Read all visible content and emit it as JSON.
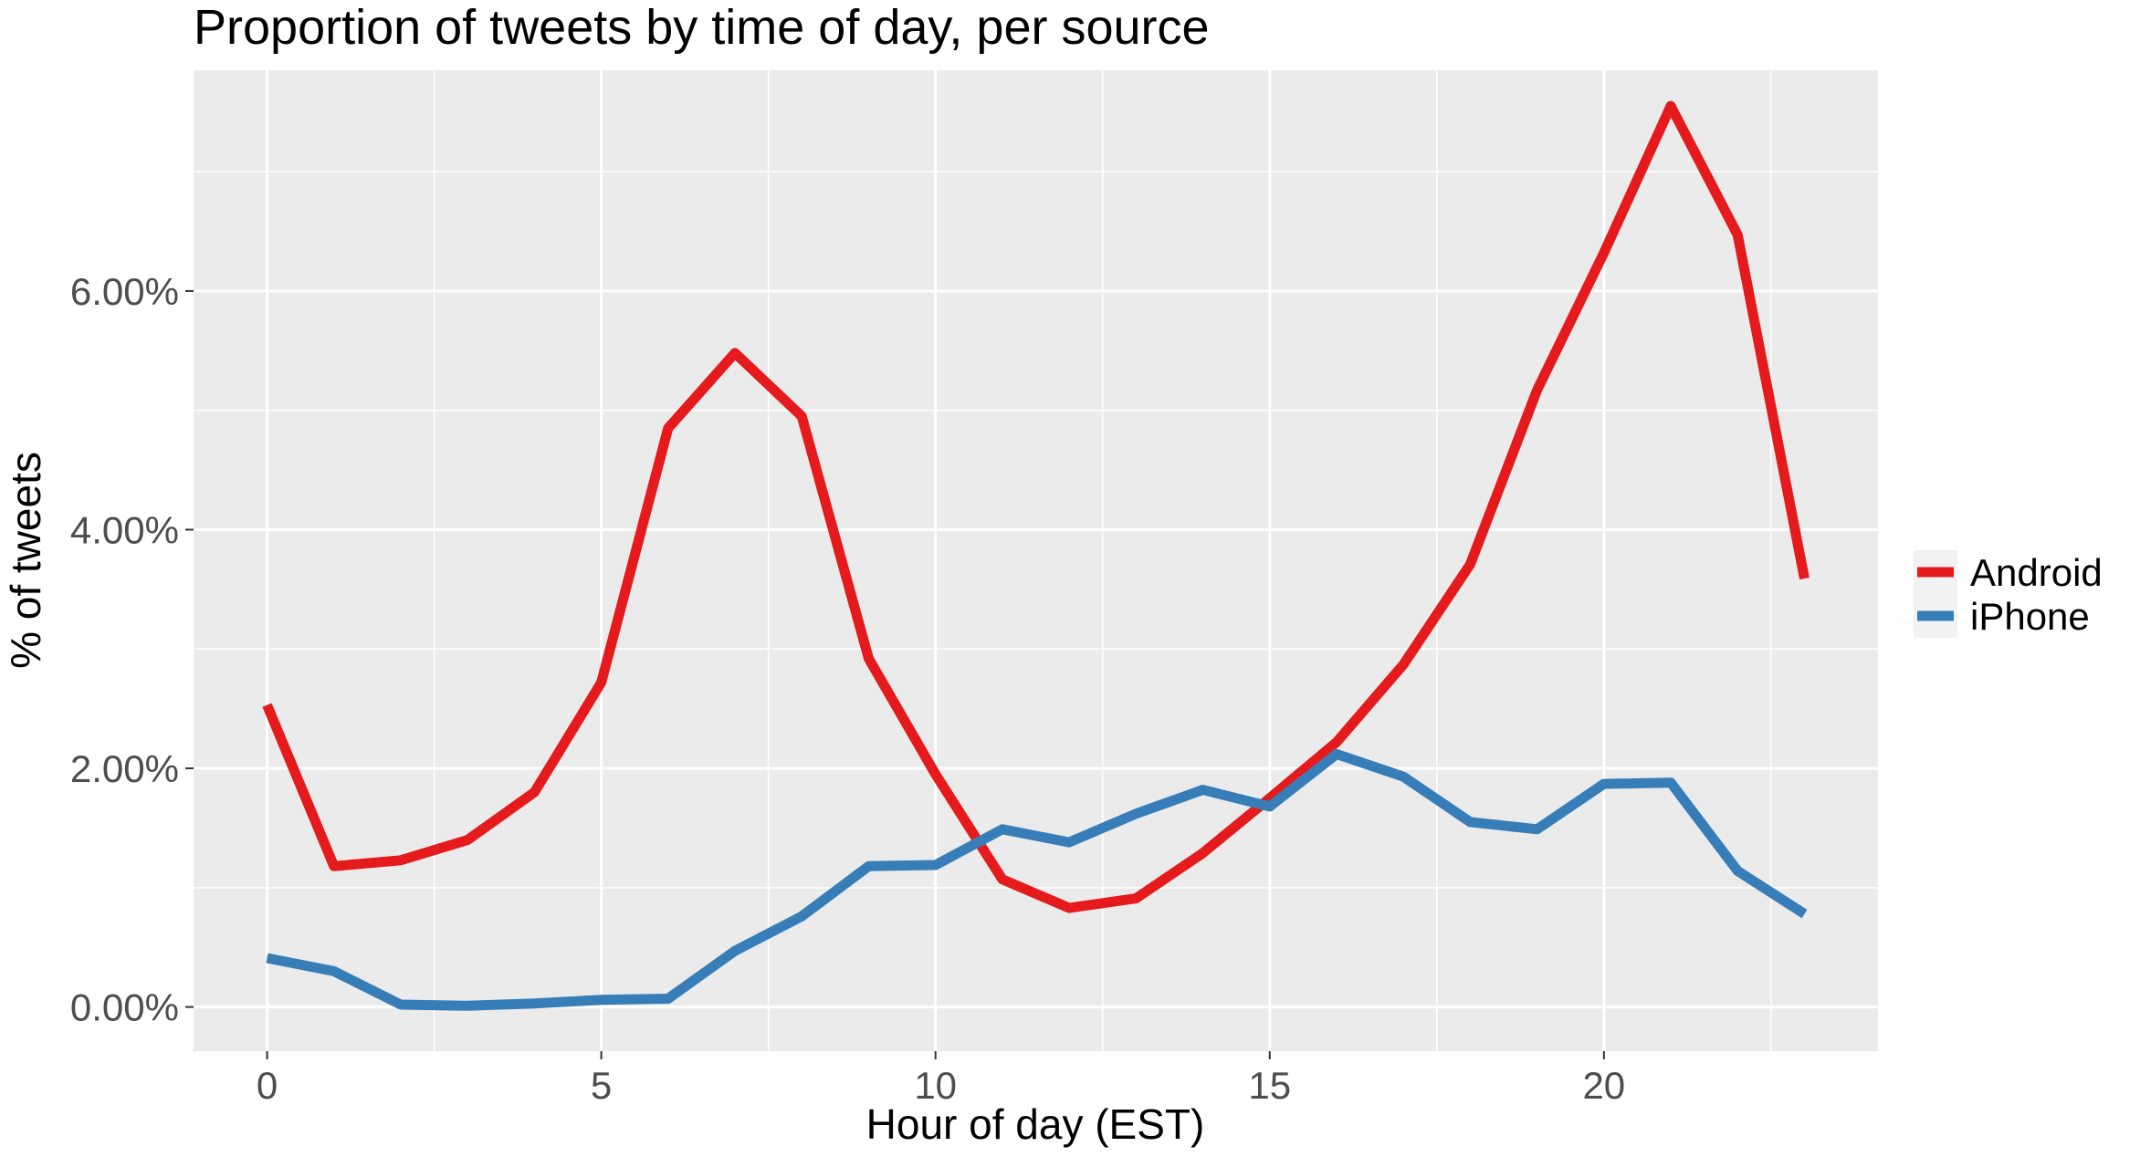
{
  "chart_data": {
    "type": "line",
    "title": "Proportion of tweets by time of day, per source",
    "xlabel": "Hour of day (EST)",
    "ylabel": "% of tweets",
    "xlim": [
      -1.1,
      24.1
    ],
    "ylim": [
      -0.0037,
      0.0785
    ],
    "x_ticks": [
      0,
      5,
      10,
      15,
      20
    ],
    "x_tick_labels": [
      "0",
      "5",
      "10",
      "15",
      "20"
    ],
    "y_ticks": [
      0,
      0.02,
      0.04,
      0.06
    ],
    "y_tick_labels": [
      "0.00%",
      "2.00%",
      "4.00%",
      "6.00%"
    ],
    "grid": true,
    "legend_position": "right",
    "x": [
      0,
      1,
      2,
      3,
      4,
      5,
      6,
      7,
      8,
      9,
      10,
      11,
      12,
      13,
      14,
      15,
      16,
      17,
      18,
      19,
      20,
      21,
      22,
      23
    ],
    "series": [
      {
        "name": "Android",
        "color": "#e41a1c",
        "values": [
          0.0253,
          0.0118,
          0.0123,
          0.014,
          0.018,
          0.0272,
          0.0485,
          0.0548,
          0.0495,
          0.0292,
          0.0195,
          0.0107,
          0.0083,
          0.0091,
          0.0129,
          0.0175,
          0.0222,
          0.0287,
          0.0371,
          0.0517,
          0.0632,
          0.0755,
          0.0647,
          0.0359
        ]
      },
      {
        "name": "iPhone",
        "color": "#377eb8",
        "values": [
          0.0041,
          0.003,
          0.0002,
          0.0001,
          0.0003,
          0.0006,
          0.0007,
          0.0047,
          0.0076,
          0.0118,
          0.0119,
          0.0149,
          0.0138,
          0.0162,
          0.0182,
          0.0168,
          0.0212,
          0.0193,
          0.0155,
          0.0149,
          0.0187,
          0.0188,
          0.0114,
          0.0078
        ]
      }
    ]
  }
}
